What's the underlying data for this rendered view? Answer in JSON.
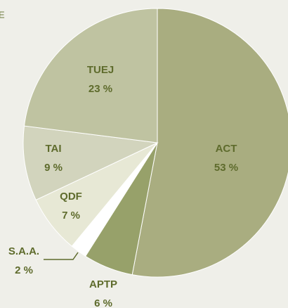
{
  "chart_data": {
    "type": "pie",
    "title": "E",
    "categories": [
      "ACT",
      "APTP",
      "S.A.A.",
      "QDF",
      "TAI",
      "TUEJ"
    ],
    "values": [
      53,
      6,
      2,
      7,
      9,
      23
    ],
    "value_labels": [
      "53 %",
      "6 %",
      "2 %",
      "7 %",
      "9 %",
      "23 %"
    ],
    "colors": [
      "#a9ad80",
      "#97a16a",
      "#ffffff",
      "#e7e8d5",
      "#d2d4bd",
      "#bfc3a1"
    ]
  }
}
